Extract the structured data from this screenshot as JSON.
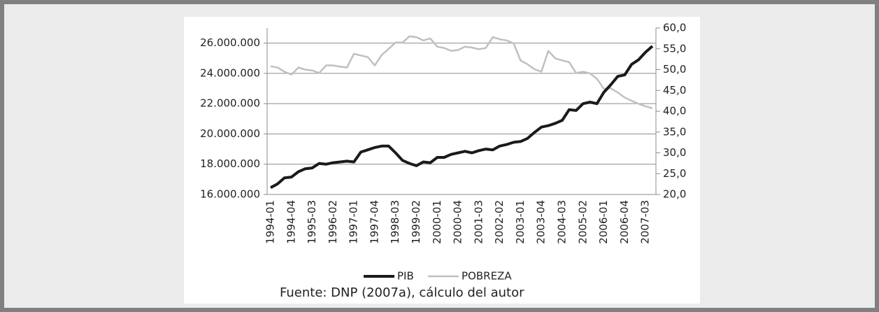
{
  "chart_data": {
    "type": "line",
    "source": "Fuente: DNP (2007a), cálculo del autor",
    "categories": [
      "1994-01",
      null,
      null,
      "1994-04",
      null,
      null,
      "1995-03",
      null,
      null,
      "1996-02",
      null,
      null,
      "1997-01",
      null,
      null,
      "1997-04",
      null,
      null,
      "1998-03",
      null,
      null,
      "1999-02",
      null,
      null,
      "2000-01",
      null,
      null,
      "2000-04",
      null,
      null,
      "2001-03",
      null,
      null,
      "2002-02",
      null,
      null,
      "2003-01",
      null,
      null,
      "2003-04",
      null,
      null,
      "2004-03",
      null,
      null,
      "2005-02",
      null,
      null,
      "2006-01",
      null,
      null,
      "2006-04",
      null,
      null,
      "2007-03",
      null
    ],
    "series": [
      {
        "name": "PIB",
        "color": "#1a1a1a",
        "values": [
          16450000,
          16700000,
          17100000,
          17150000,
          17500000,
          17700000,
          17750000,
          18050000,
          18000000,
          18100000,
          18150000,
          18200000,
          18150000,
          18800000,
          18950000,
          19100000,
          19200000,
          19200000,
          18750000,
          18250000,
          18050000,
          17900000,
          18150000,
          18100000,
          18450000,
          18450000,
          18650000,
          18750000,
          18850000,
          18750000,
          18900000,
          19000000,
          18950000,
          19200000,
          19300000,
          19450000,
          19500000,
          19700000,
          20100000,
          20450000,
          20550000,
          20700000,
          20900000,
          21600000,
          21550000,
          22000000,
          22100000,
          22000000,
          22750000,
          23250000,
          23800000,
          23900000,
          24600000,
          24900000,
          25400000,
          25800000
        ]
      },
      {
        "name": "POBREZA",
        "color": "#c0c0c0",
        "axis": "y2",
        "values": [
          50.8,
          50.5,
          49.5,
          48.8,
          50.5,
          50.0,
          49.8,
          49.2,
          51.0,
          51.0,
          50.7,
          50.5,
          53.8,
          53.4,
          53.0,
          51.0,
          53.5,
          55.0,
          56.5,
          56.5,
          58.0,
          57.8,
          57.0,
          57.5,
          55.5,
          55.2,
          54.5,
          54.7,
          55.5,
          55.3,
          54.9,
          55.2,
          57.8,
          57.3,
          57.0,
          56.3,
          52.2,
          51.3,
          50.1,
          49.5,
          54.5,
          52.7,
          52.2,
          51.8,
          49.2,
          49.5,
          49.1,
          47.8,
          45.4,
          45.5,
          44.5,
          43.3,
          42.5,
          41.8,
          41.2,
          40.7
        ]
      }
    ],
    "ylim": [
      16000000,
      27000000
    ],
    "yticks": [
      {
        "value": 16000000,
        "label": "16.000.000"
      },
      {
        "value": 18000000,
        "label": "18.000.000"
      },
      {
        "value": 20000000,
        "label": "20.000.000"
      },
      {
        "value": 22000000,
        "label": "22.000.000"
      },
      {
        "value": 24000000,
        "label": "24.000.000"
      },
      {
        "value": 26000000,
        "label": "26.000.000"
      }
    ],
    "y2lim": [
      20,
      60
    ],
    "y2ticks": [
      {
        "value": 20,
        "label": "20,0"
      },
      {
        "value": 25,
        "label": "25,0"
      },
      {
        "value": 30,
        "label": "30,0"
      },
      {
        "value": 35,
        "label": "35,0"
      },
      {
        "value": 40,
        "label": "40,0"
      },
      {
        "value": 45,
        "label": "45,0"
      },
      {
        "value": 50,
        "label": "50,0"
      },
      {
        "value": 55,
        "label": "55,0"
      },
      {
        "value": 60,
        "label": "60,0"
      }
    ],
    "grid": true
  }
}
